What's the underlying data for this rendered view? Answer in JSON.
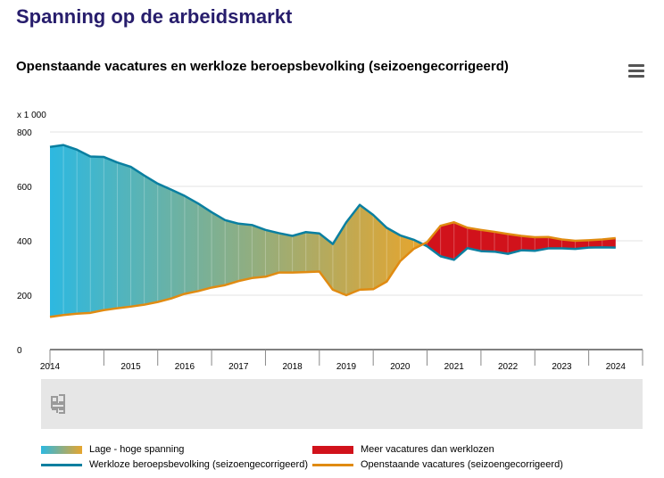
{
  "page": {
    "title": "Spanning op de arbeidsmarkt"
  },
  "chart": {
    "title": "Openstaande vacatures en werkloze beroepsbevolking (seizoengecorrigeerd)"
  },
  "menu": {
    "icon": "hamburger-menu-icon"
  },
  "nav": {
    "icon": "cbs-logo-icon"
  },
  "legend": {
    "gradient_label": "Lage - hoge spanning",
    "red_label": "Meer vacatures dan werklozen",
    "unemployed_label": "Werkloze beroepsbevolking (seizoengecorrigeerd)",
    "vacancies_label": "Openstaande vacatures (seizoengecorrigeerd)"
  },
  "colors": {
    "unemployed_line": "#0a7fa0",
    "vacancies_line": "#e08b12",
    "gradient_low": "#2db8e0",
    "gradient_high": "#e6a52e",
    "more_vacancies": "#d1121b",
    "title": "#271d6c"
  },
  "chart_data": {
    "type": "area",
    "unit_label": "x 1 000",
    "ylim": [
      0,
      800
    ],
    "yticks": [
      "0",
      "200",
      "400",
      "600",
      "800"
    ],
    "xlim": [
      2014.0,
      2025.0
    ],
    "xtick_labels": [
      "2014",
      "2015",
      "2016",
      "2017",
      "2018",
      "2019",
      "2020",
      "2021",
      "2022",
      "2023",
      "2024"
    ],
    "legend_position": "bottom",
    "series": [
      {
        "name": "Werkloze beroepsbevolking (seizoengecorrigeerd)",
        "x": [
          2014.0,
          2014.25,
          2014.5,
          2014.75,
          2015.0,
          2015.25,
          2015.5,
          2015.75,
          2016.0,
          2016.25,
          2016.5,
          2016.75,
          2017.0,
          2017.25,
          2017.5,
          2017.75,
          2018.0,
          2018.25,
          2018.5,
          2018.75,
          2019.0,
          2019.25,
          2019.5,
          2019.75,
          2020.0,
          2020.25,
          2020.5,
          2020.75,
          2021.0,
          2021.25,
          2021.5,
          2021.75,
          2022.0,
          2022.25,
          2022.5,
          2022.75,
          2023.0,
          2023.25,
          2023.5,
          2023.75,
          2024.0,
          2024.25,
          2024.5
        ],
        "values": [
          745,
          752,
          735,
          710,
          708,
          688,
          672,
          640,
          610,
          588,
          565,
          537,
          505,
          476,
          463,
          458,
          440,
          428,
          418,
          432,
          427,
          388,
          468,
          532,
          495,
          448,
          420,
          404,
          380,
          343,
          330,
          373,
          362,
          360,
          352,
          365,
          363,
          372,
          372,
          370,
          375,
          376,
          375
        ]
      },
      {
        "name": "Openstaande vacatures (seizoengecorrigeerd)",
        "x": [
          2014.0,
          2014.25,
          2014.5,
          2014.75,
          2015.0,
          2015.25,
          2015.5,
          2015.75,
          2016.0,
          2016.25,
          2016.5,
          2016.75,
          2017.0,
          2017.25,
          2017.5,
          2017.75,
          2018.0,
          2018.25,
          2018.5,
          2018.75,
          2019.0,
          2019.25,
          2019.5,
          2019.75,
          2020.0,
          2020.25,
          2020.5,
          2020.75,
          2021.0,
          2021.25,
          2021.5,
          2021.75,
          2022.0,
          2022.25,
          2022.5,
          2022.75,
          2023.0,
          2023.25,
          2023.5,
          2023.75,
          2024.0,
          2024.25,
          2024.5
        ],
        "values": [
          120,
          127,
          132,
          135,
          145,
          152,
          158,
          165,
          175,
          188,
          205,
          215,
          228,
          237,
          252,
          263,
          268,
          283,
          283,
          285,
          287,
          220,
          200,
          220,
          222,
          250,
          325,
          370,
          395,
          455,
          468,
          448,
          440,
          433,
          425,
          418,
          413,
          414,
          405,
          400,
          402,
          405,
          410
        ]
      }
    ]
  }
}
